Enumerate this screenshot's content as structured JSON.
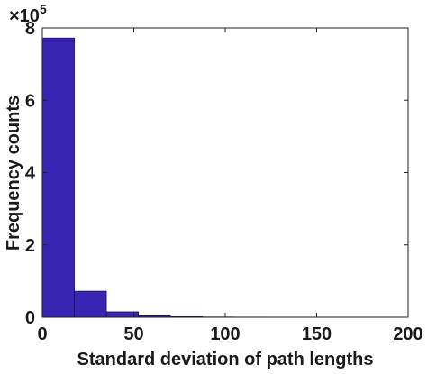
{
  "chart_data": {
    "type": "bar",
    "xlabel": "Standard deviation of path lengths",
    "ylabel": "Frequency counts",
    "xlim": [
      0,
      200
    ],
    "ylim": [
      0,
      800000
    ],
    "y_multiplier": {
      "base": "×10",
      "exponent": "5"
    },
    "x_ticks": [
      0,
      50,
      100,
      150,
      200
    ],
    "x_tick_labels": [
      "0",
      "50",
      "100",
      "150",
      "200"
    ],
    "y_ticks": [
      0,
      200000,
      400000,
      600000,
      800000
    ],
    "y_tick_labels": [
      "0",
      "2",
      "4",
      "6",
      "8"
    ],
    "bin_edges": [
      0,
      17.5,
      35,
      52.5,
      70,
      87.5,
      105,
      122.5,
      140,
      157.5,
      175,
      192.5
    ],
    "values": [
      772000,
      72000,
      15000,
      4000,
      1500,
      600,
      300,
      150,
      80,
      40,
      20
    ],
    "bar_color": "#3a24b4",
    "bar_edge_color": "#1a1050",
    "grid": false,
    "box": true
  }
}
